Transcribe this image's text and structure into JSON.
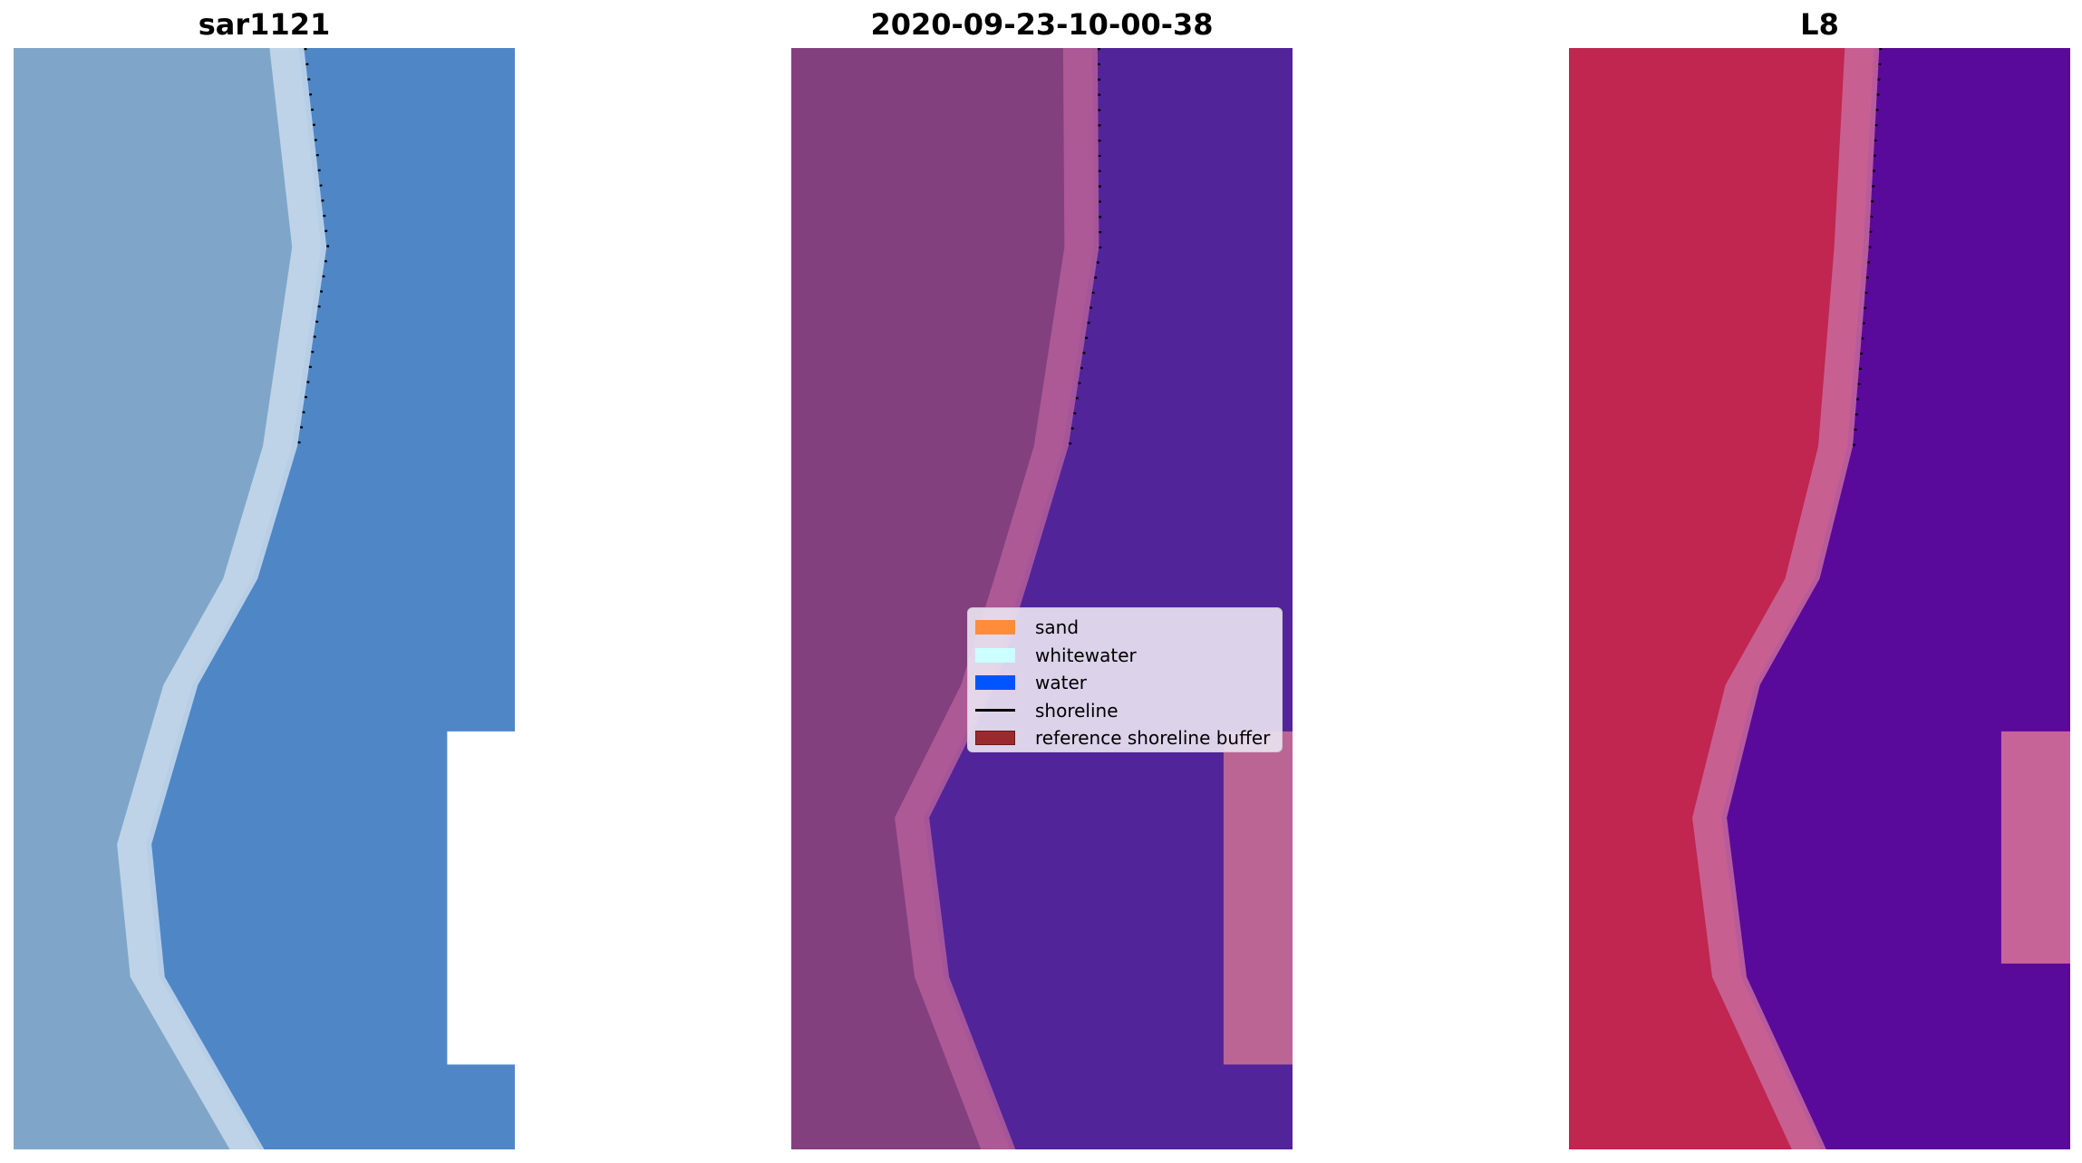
{
  "panels": [
    {
      "title": "sar1121",
      "land_color": "#7fa6c9",
      "shore_color": "#c9daec",
      "water_color": "#4f86c6",
      "buffer_color": "#ffffff"
    },
    {
      "title": "2020-09-23-10-00-38",
      "land_color": "#83407f",
      "shore_color": "#b45e9a",
      "water_color": "#52249a",
      "buffer_color": "#bb6595"
    },
    {
      "title": "L8",
      "land_color": "#c0264f",
      "shore_color": "#c96a9c",
      "water_color": "#5a0a9a",
      "buffer_color": "#c66498"
    }
  ],
  "legend": {
    "items": [
      {
        "label": "sand",
        "color": "#ff8c3a",
        "kind": "patch"
      },
      {
        "label": "whitewater",
        "color": "#ccffff",
        "kind": "patch"
      },
      {
        "label": "water",
        "color": "#0055ff",
        "kind": "patch"
      },
      {
        "label": "shoreline",
        "color": "#000000",
        "kind": "line"
      },
      {
        "label": "reference shoreline buffer",
        "color": "#9b2a2f",
        "kind": "patch"
      }
    ]
  }
}
